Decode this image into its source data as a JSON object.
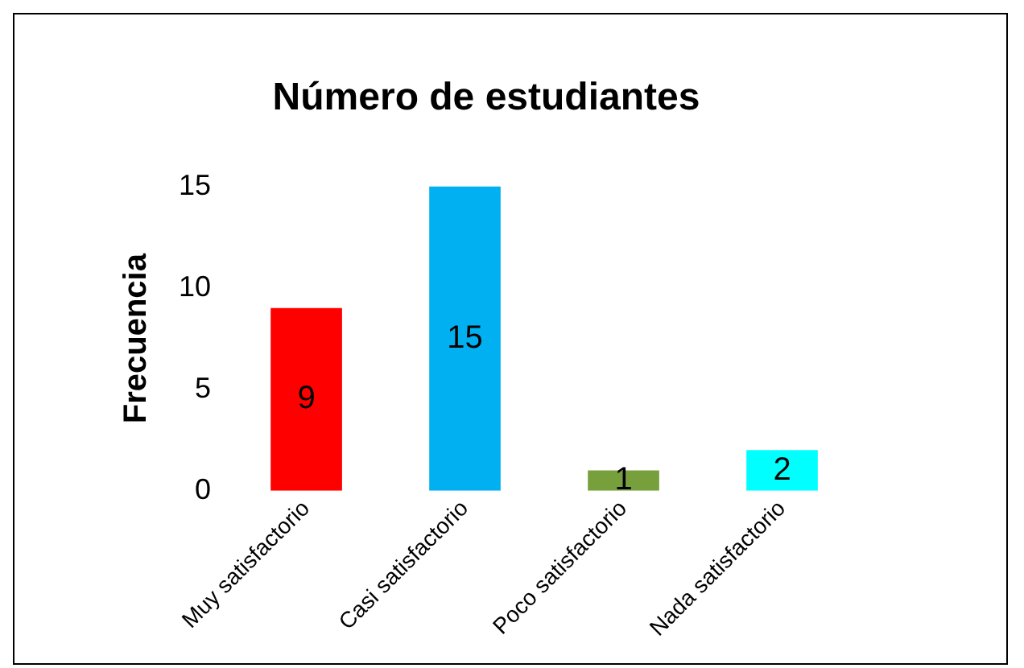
{
  "chart_data": {
    "type": "bar",
    "title": "Número de estudiantes",
    "ylabel": "Frecuencia",
    "categories": [
      "Muy satisfactorio",
      "Casi satisfactorio",
      "Poco satisfactorio",
      "Nada satisfactorio"
    ],
    "values": [
      9,
      15,
      1,
      2
    ],
    "colors": [
      "#ff0000",
      "#00b0f0",
      "#77a03c",
      "#00ffff"
    ],
    "ylim": [
      0,
      15
    ],
    "yticks": [
      0,
      5,
      10,
      15
    ],
    "grid": false,
    "legend": false,
    "data_labels": true
  }
}
